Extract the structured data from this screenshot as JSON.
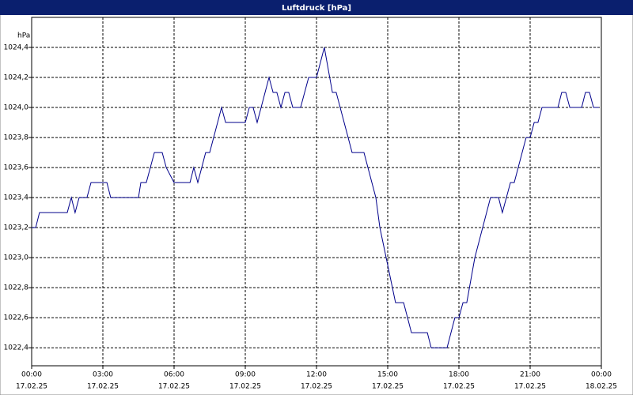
{
  "chart_data": {
    "type": "line",
    "title": "Luftdruck [hPa]",
    "y_label": "hPa",
    "x": [
      0,
      0.17,
      0.33,
      1.5,
      1.67,
      1.83,
      2,
      2.33,
      2.5,
      3.17,
      3.33,
      4.5,
      4.6,
      4.83,
      5.17,
      5.5,
      5.67,
      6,
      6.67,
      6.83,
      7,
      7.33,
      7.5,
      8,
      8.17,
      9,
      9.17,
      9.33,
      9.5,
      10,
      10.17,
      10.33,
      10.5,
      10.67,
      10.83,
      11,
      11.33,
      11.67,
      12,
      12.33,
      12.67,
      12.83,
      13.5,
      14,
      14.5,
      14.67,
      15.33,
      15.67,
      16,
      16.67,
      16.83,
      17.5,
      17.83,
      18,
      18.17,
      18.33,
      18.67,
      19.33,
      19.67,
      19.83,
      20.17,
      20.33,
      20.83,
      21,
      21.17,
      21.33,
      21.5,
      22.17,
      22.33,
      22.5,
      22.67,
      23.17,
      23.33,
      23.5,
      23.67,
      23.9
    ],
    "series": [
      {
        "name": "Luftdruck",
        "color": "#00008b",
        "values": [
          1023.2,
          1023.2,
          1023.3,
          1023.3,
          1023.4,
          1023.3,
          1023.4,
          1023.4,
          1023.5,
          1023.5,
          1023.4,
          1023.4,
          1023.5,
          1023.5,
          1023.7,
          1023.7,
          1023.6,
          1023.5,
          1023.5,
          1023.6,
          1023.5,
          1023.7,
          1023.7,
          1024.0,
          1023.9,
          1023.9,
          1024.0,
          1024.0,
          1023.9,
          1024.2,
          1024.1,
          1024.1,
          1024.0,
          1024.1,
          1024.1,
          1024.0,
          1024.0,
          1024.2,
          1024.2,
          1024.4,
          1024.1,
          1024.1,
          1023.7,
          1023.7,
          1023.4,
          1023.2,
          1022.7,
          1022.7,
          1022.5,
          1022.5,
          1022.4,
          1022.4,
          1022.6,
          1022.6,
          1022.7,
          1022.7,
          1023.0,
          1023.4,
          1023.4,
          1023.3,
          1023.5,
          1023.5,
          1023.8,
          1023.8,
          1023.9,
          1023.9,
          1024.0,
          1024.0,
          1024.1,
          1024.1,
          1024.0,
          1024.0,
          1024.1,
          1024.1,
          1024.0,
          1024.0
        ]
      }
    ],
    "xlim": [
      0,
      24
    ],
    "ylim": [
      1022.28,
      1024.6
    ],
    "xticks": [
      {
        "value": 0,
        "label": [
          "00:00",
          "17.02.25"
        ]
      },
      {
        "value": 3,
        "label": [
          "03:00",
          "17.02.25"
        ]
      },
      {
        "value": 6,
        "label": [
          "06:00",
          "17.02.25"
        ]
      },
      {
        "value": 9,
        "label": [
          "09:00",
          "17.02.25"
        ]
      },
      {
        "value": 12,
        "label": [
          "12:00",
          "17.02.25"
        ]
      },
      {
        "value": 15,
        "label": [
          "15:00",
          "17.02.25"
        ]
      },
      {
        "value": 18,
        "label": [
          "18:00",
          "17.02.25"
        ]
      },
      {
        "value": 21,
        "label": [
          "21:00",
          "17.02.25"
        ]
      },
      {
        "value": 24,
        "label": [
          "00:00",
          "18.02.25"
        ]
      }
    ],
    "yticks": [
      {
        "value": 1022.4,
        "label": "1022,4"
      },
      {
        "value": 1022.6,
        "label": "1022,6"
      },
      {
        "value": 1022.8,
        "label": "1022,8"
      },
      {
        "value": 1023.0,
        "label": "1023,0"
      },
      {
        "value": 1023.2,
        "label": "1023,2"
      },
      {
        "value": 1023.4,
        "label": "1023,4"
      },
      {
        "value": 1023.6,
        "label": "1023,6"
      },
      {
        "value": 1023.8,
        "label": "1023,8"
      },
      {
        "value": 1024.0,
        "label": "1024,0"
      },
      {
        "value": 1024.2,
        "label": "1024,2"
      },
      {
        "value": 1024.4,
        "label": "1024,4"
      }
    ],
    "grid": true
  }
}
